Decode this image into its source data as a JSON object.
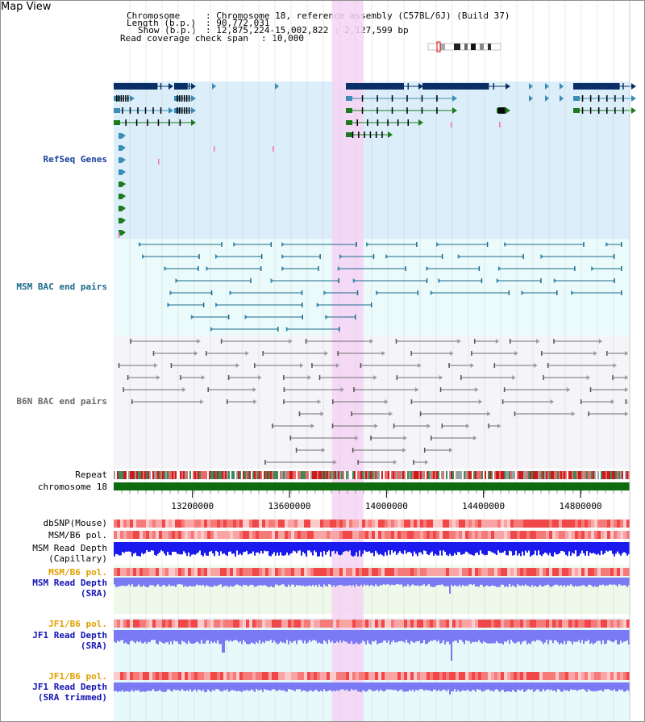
{
  "title": "Map View",
  "header": {
    "chromosome_key": "Chromosome",
    "chromosome_value": ": Chromosome 18, reference assembly (C57BL/6J) (Build 37)",
    "length_key": "Length (b.p.)",
    "length_value": ": 90,772,031",
    "show_key": "Show (b.p.)",
    "show_value": ": 12,875,224-15,002,822 : 2,127,599 bp",
    "read_span_key": "Read coverage check span",
    "read_span_value": ": 10,000"
  },
  "tracks": {
    "refseq": "RefSeq Genes",
    "msm_bac": "MSM BAC end pairs",
    "b6n_bac": "B6N BAC end pairs",
    "repeat": "Repeat",
    "chromosome": "chromosome 18",
    "dbsnp": "dbSNP(Mouse)",
    "msm_b6_pol": "MSM/B6 pol.",
    "msm_depth_cap": "MSM Read Depth\n(Capillary)",
    "msm_b6_pol_2": "MSM/B6 pol.",
    "msm_depth_sra": "MSM Read Depth\n(SRA)",
    "jf1_b6_pol": "JF1/B6 pol.",
    "jf1_depth_sra": "JF1 Read Depth\n(SRA)",
    "jf1_b6_pol_2": "JF1/B6 pol.",
    "jf1_depth_trim": "JF1 Read Depth\n(SRA trimmed)"
  },
  "axis": {
    "ticks": [
      "13200000",
      "13600000",
      "14000000",
      "14400000",
      "14800000"
    ],
    "tick_values": [
      13200000,
      13600000,
      14000000,
      14400000,
      14800000
    ],
    "range": [
      12875224,
      15002822
    ],
    "highlight": [
      13775000,
      13905000
    ]
  },
  "colors": {
    "refseq_bg": "#dbeef9",
    "msm_bg": "#ebfbfb",
    "b6n_bg": "#f5f5f9",
    "highlight": "#f6d3f4",
    "gene_dark": "#0a2f66",
    "gene_mid": "#3b8db5",
    "gene_green": "#1c7a1c",
    "msm_pair": "#1b6a8a",
    "b6n_pair": "#707070",
    "chromosome_bar": "#0e6b0e",
    "depth_blue": "#1a1aee",
    "depth_light": "#7a7af4"
  }
}
